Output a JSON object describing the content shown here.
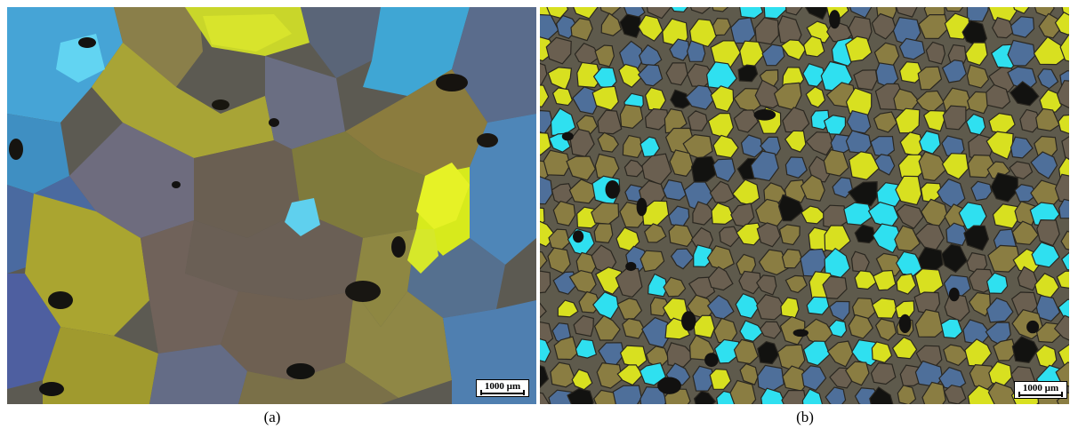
{
  "panels": [
    {
      "label": "(a)",
      "scale_bar": "1000 µm",
      "description_colors": [
        "#3fb8e0",
        "#b8c21e",
        "#8a8350",
        "#5f6d8a",
        "#6b5f52",
        "#151512"
      ]
    },
    {
      "label": "(b)",
      "scale_bar": "1000 µm",
      "description_colors": [
        "#2fe0f0",
        "#d8e020",
        "#8a7d42",
        "#4e6f9a",
        "#6a5f50",
        "#121210"
      ]
    }
  ]
}
